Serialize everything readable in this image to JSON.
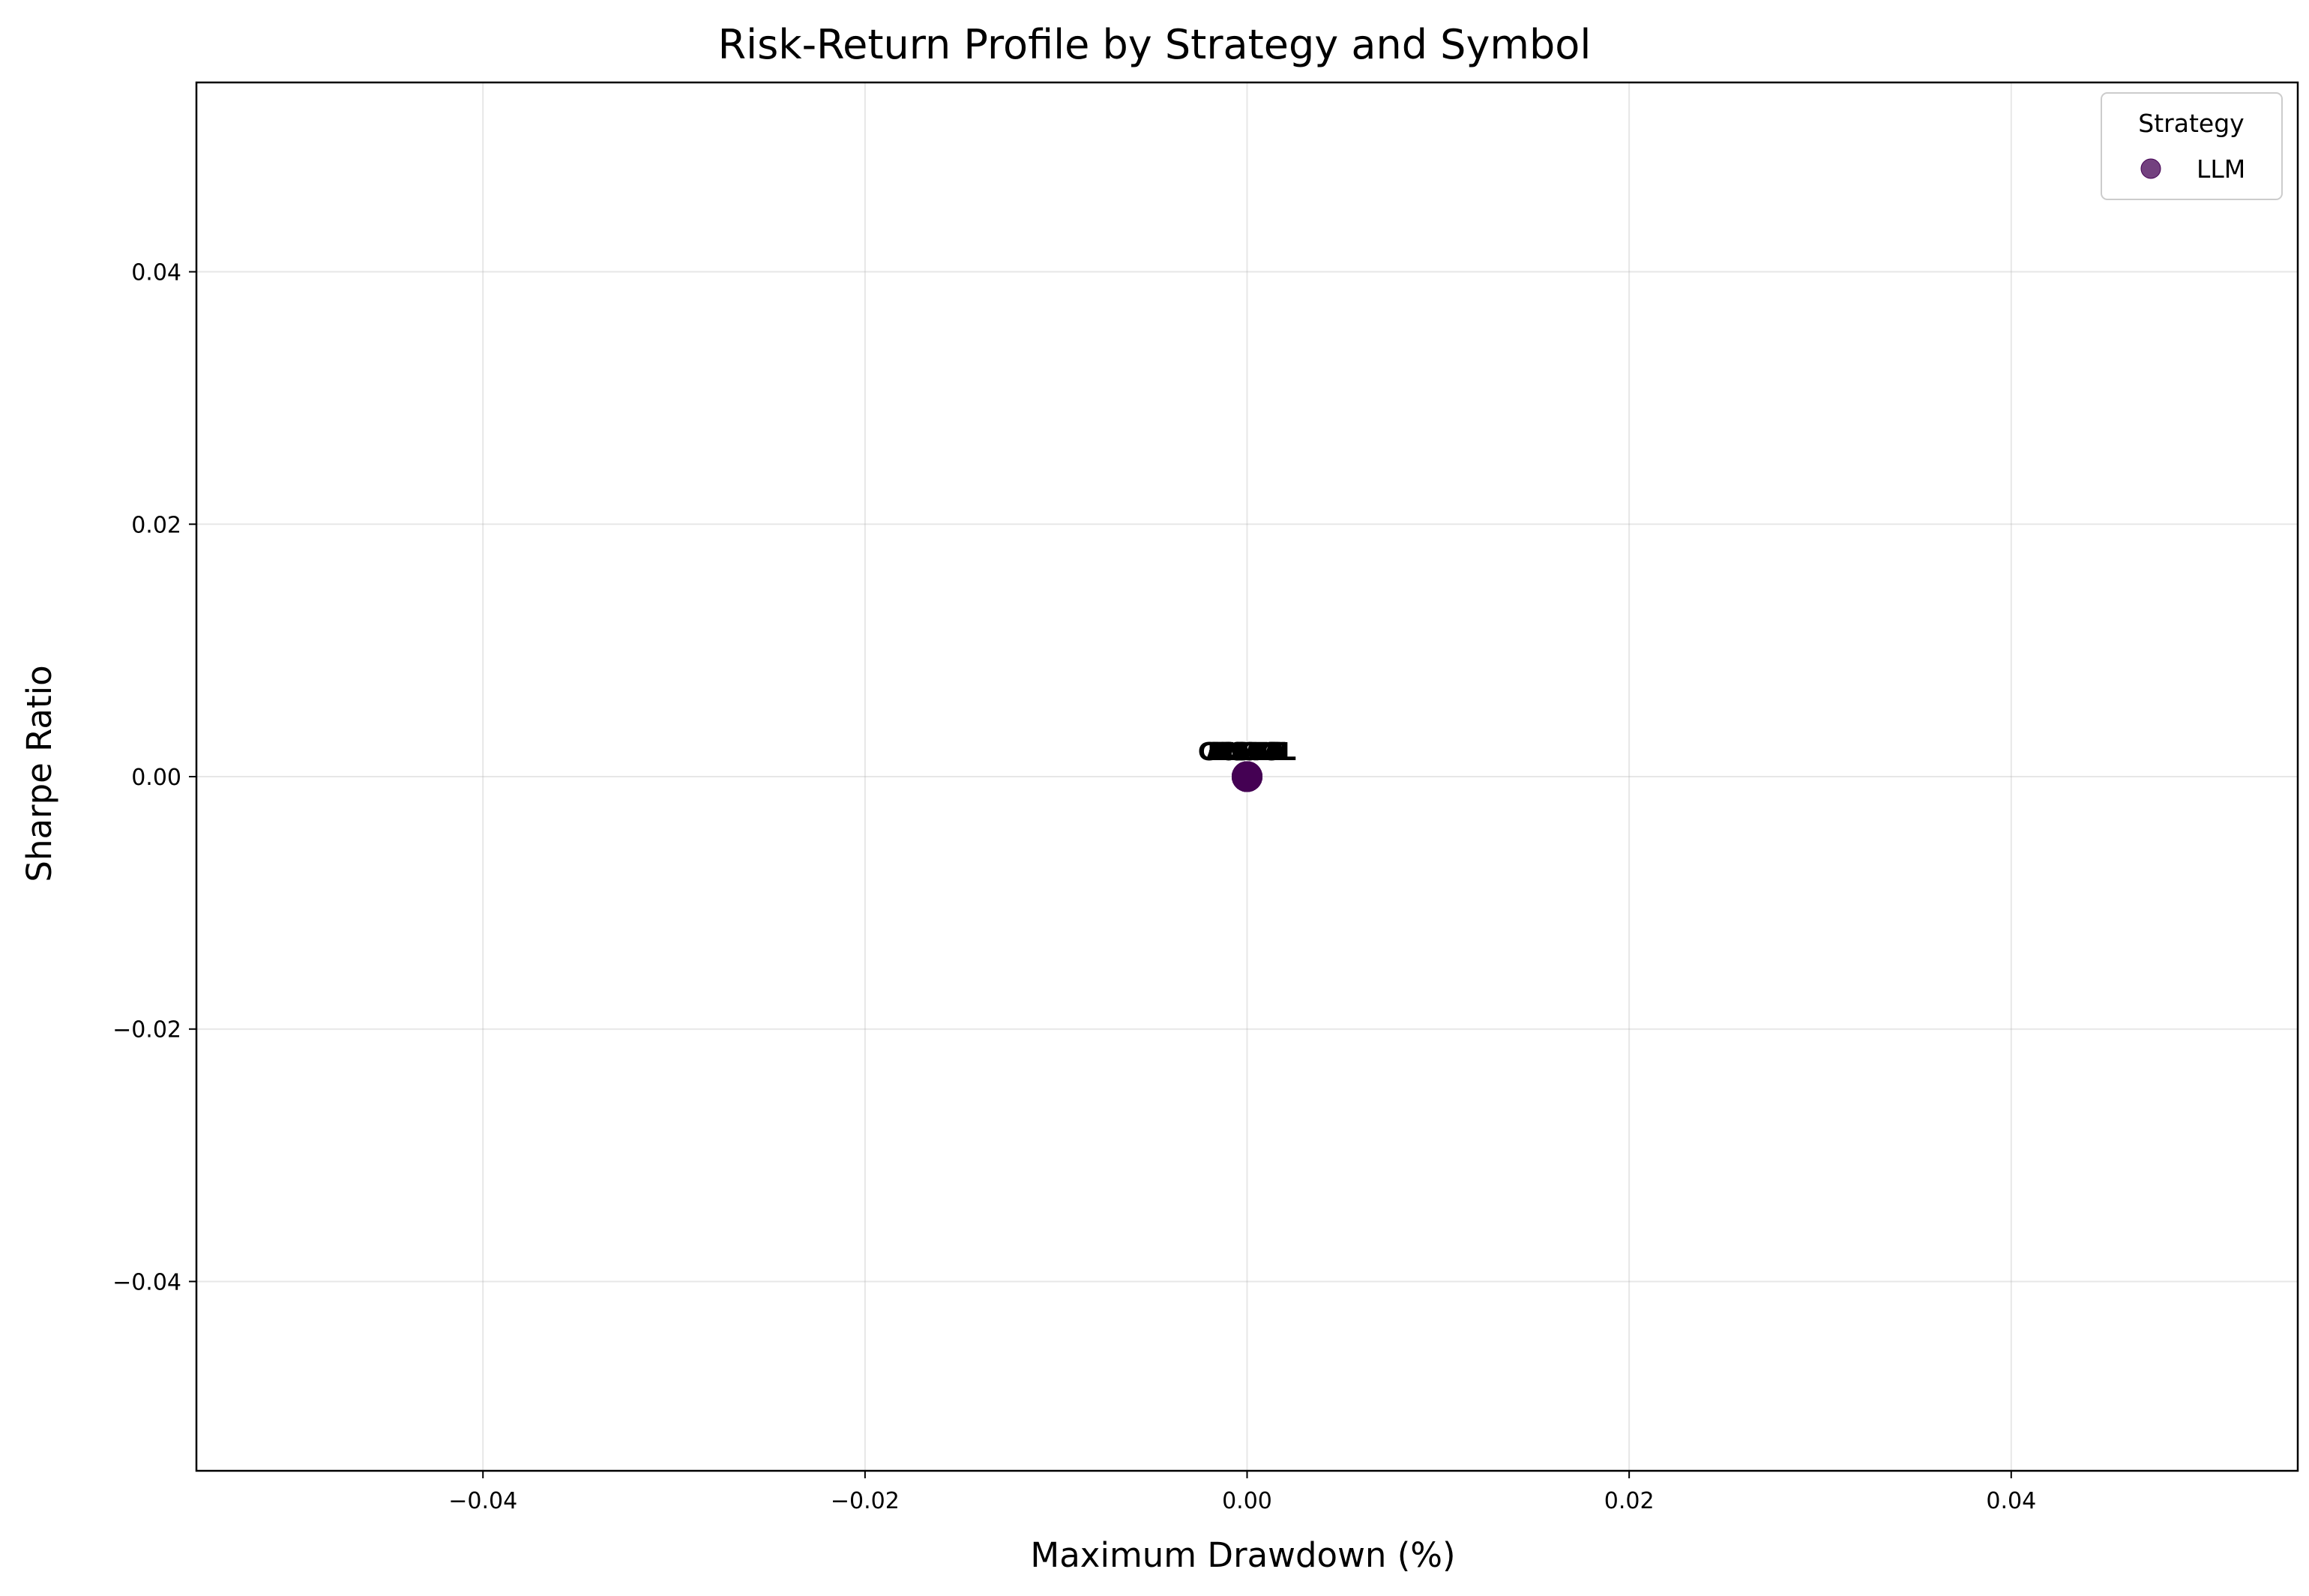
{
  "chart_data": {
    "type": "scatter",
    "title": "Risk-Return Profile by Strategy and Symbol",
    "xlabel": "Maximum Drawdown (%)",
    "ylabel": "Sharpe Ratio",
    "xlim": [
      -0.055,
      0.055
    ],
    "ylim": [
      -0.055,
      0.055
    ],
    "xticks": [
      -0.04,
      -0.02,
      0.0,
      0.02,
      0.04
    ],
    "yticks": [
      -0.04,
      -0.02,
      0.0,
      0.02,
      0.04
    ],
    "xtick_labels": [
      "−0.04",
      "−0.02",
      "0.00",
      "0.02",
      "0.04"
    ],
    "ytick_labels": [
      "−0.04",
      "−0.02",
      "0.00",
      "0.02",
      "0.04"
    ],
    "grid": true,
    "legend": {
      "title": "Strategy",
      "placement": "top-right",
      "entries": [
        "LLM"
      ]
    },
    "series": [
      {
        "name": "LLM",
        "color": "#440154",
        "points": [
          {
            "x": 0.0,
            "y": 0.0,
            "label": "AMZN"
          },
          {
            "x": 0.0,
            "y": 0.0,
            "label": "MSFT"
          },
          {
            "x": 0.0,
            "y": 0.0,
            "label": "NVDA"
          },
          {
            "x": 0.0,
            "y": 0.0,
            "label": "TSLA"
          },
          {
            "x": 0.0,
            "y": 0.0,
            "label": "AMD"
          },
          {
            "x": 0.0,
            "y": 0.0,
            "label": "AAPL"
          },
          {
            "x": 0.0,
            "y": 0.0,
            "label": "GOOGL"
          },
          {
            "x": 0.0,
            "y": 0.0,
            "label": "META"
          }
        ]
      }
    ]
  }
}
